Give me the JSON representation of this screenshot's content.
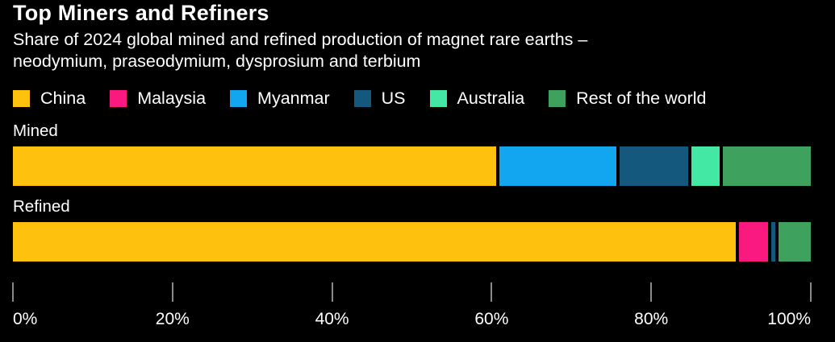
{
  "header": {
    "title": "Top Miners and Refiners",
    "subtitle_lines": [
      "Share of 2024 global mined and refined production of magnet rare earths –",
      "neodymium, praseodymium, dysprosium and terbium"
    ]
  },
  "legend": [
    {
      "label": "China",
      "color": "#FEC10E"
    },
    {
      "label": "Malaysia",
      "color": "#F9197F"
    },
    {
      "label": "Myanmar",
      "color": "#12A5F0"
    },
    {
      "label": "US",
      "color": "#14587E"
    },
    {
      "label": "Australia",
      "color": "#42E8A4"
    },
    {
      "label": "Rest of the world",
      "color": "#3EA15D"
    }
  ],
  "chart_data": {
    "type": "bar",
    "orientation": "horizontal",
    "stacked": true,
    "title": "Top Miners and Refiners",
    "subtitle": "Share of 2024 global mined and refined production of magnet rare earths – neodymium, praseodymium, dysprosium and terbium",
    "categories": [
      "Mined",
      "Refined"
    ],
    "series": [
      {
        "name": "China",
        "color": "#FEC10E",
        "values": [
          61,
          91
        ]
      },
      {
        "name": "Malaysia",
        "color": "#F9197F",
        "values": [
          0,
          4
        ]
      },
      {
        "name": "Myanmar",
        "color": "#12A5F0",
        "values": [
          15,
          0
        ]
      },
      {
        "name": "US",
        "color": "#14587E",
        "values": [
          9,
          1
        ]
      },
      {
        "name": "Australia",
        "color": "#42E8A4",
        "values": [
          4,
          0
        ]
      },
      {
        "name": "Rest of the world",
        "color": "#3EA15D",
        "values": [
          11,
          4
        ]
      }
    ],
    "xlim": [
      0,
      100
    ],
    "x_ticks": [
      "0%",
      "20%",
      "40%",
      "60%",
      "80%",
      "100%"
    ],
    "unit": "%",
    "legend_position": "top",
    "grid": false,
    "background": "#000000"
  }
}
